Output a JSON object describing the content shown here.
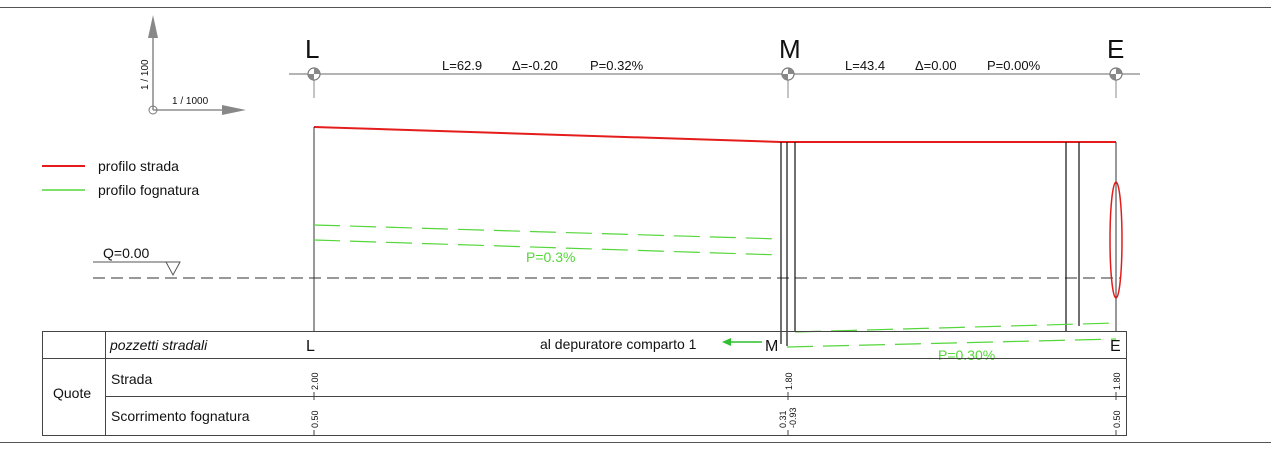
{
  "scale": {
    "vertical": "1 / 100",
    "horizontal": "1 / 1000"
  },
  "nodes": [
    "L",
    "M",
    "E"
  ],
  "segments": [
    {
      "L": "L=62.9",
      "delta": "Δ=-0.20",
      "P": "P=0.32%"
    },
    {
      "L": "L=43.4",
      "delta": "Δ=0.00",
      "P": "P=0.00%"
    }
  ],
  "legend": {
    "road": "profilo strada",
    "sewer": "profilo fognatura"
  },
  "datum": "Q=0.00",
  "slopes": {
    "upper": "P=0.3%",
    "lower": "P=0.30%"
  },
  "table": {
    "row1_label": "pozzetti stradali",
    "outflow": "al depuratore comparto 1",
    "group_label": "Quote",
    "road_label": "Strada",
    "sewer_label": "Scorrimento fognatura",
    "nodes": [
      "L",
      "M",
      "E"
    ],
    "road_values": [
      "2.00",
      "1.80",
      "1.80"
    ],
    "sewer_values": [
      "0.50",
      "0.31",
      "0.50"
    ],
    "sewer_values_extra": [
      "-0.93"
    ]
  },
  "colors": {
    "road": "#e51c1c",
    "sewer": "#55d63a",
    "outflow": "#2fbf2f"
  }
}
